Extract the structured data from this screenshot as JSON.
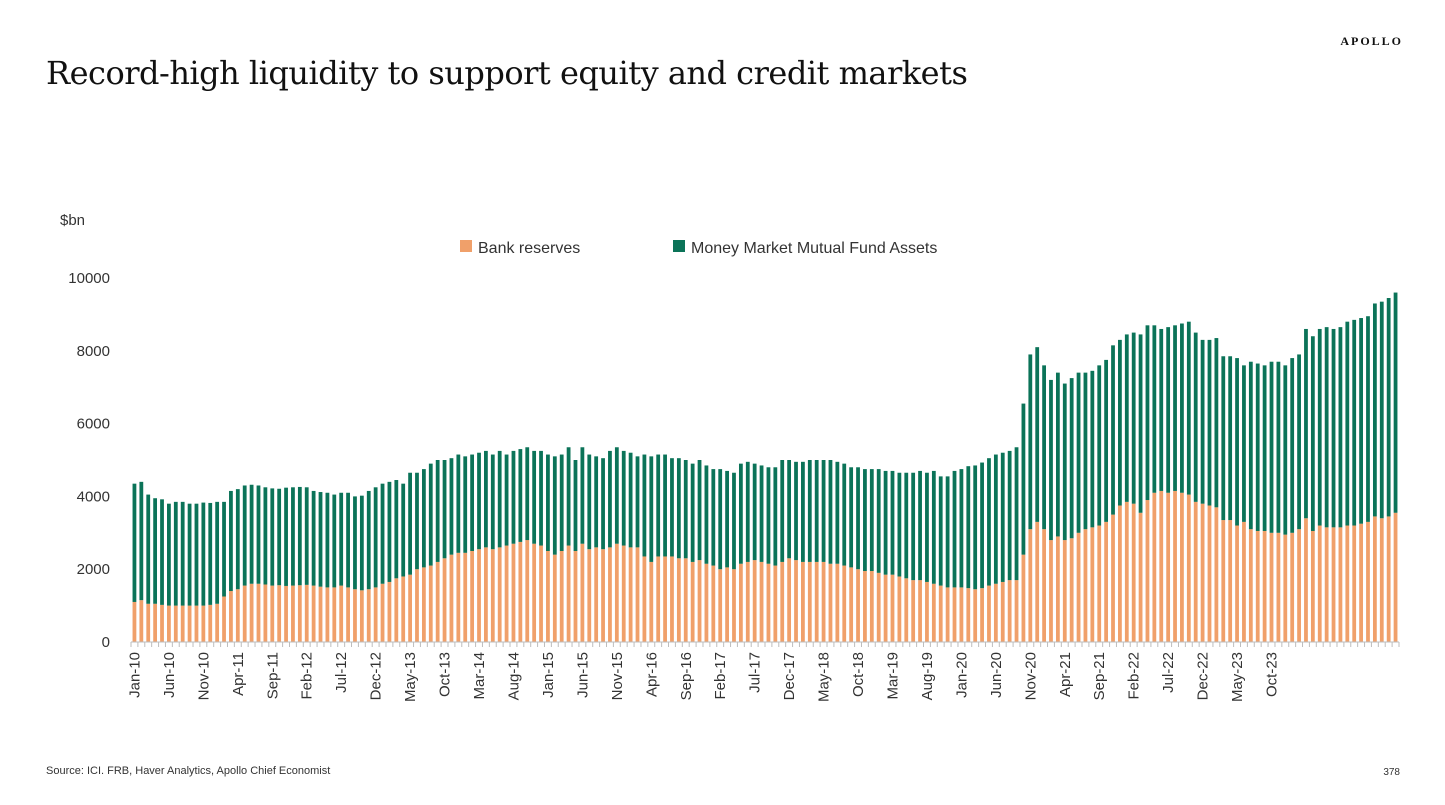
{
  "brand": "APOLLO",
  "title": "Record-high liquidity to support equity and credit markets",
  "source": "Source: ICI. FRB, Haver Analytics, Apollo Chief Economist",
  "page_number": "378",
  "colors": {
    "bank_reserves": "#f0a06a",
    "mmf": "#0b7358"
  },
  "chart_data": {
    "type": "bar",
    "stacked": true,
    "ylabel": "$bn",
    "ylim": [
      0,
      10000
    ],
    "yticks": [
      0,
      2000,
      4000,
      6000,
      8000,
      10000
    ],
    "xtick_labels": [
      "Jan-10",
      "Jun-10",
      "Nov-10",
      "Apr-11",
      "Sep-11",
      "Feb-12",
      "Jul-12",
      "Dec-12",
      "May-13",
      "Oct-13",
      "Mar-14",
      "Aug-14",
      "Jan-15",
      "Jun-15",
      "Nov-15",
      "Apr-16",
      "Sep-16",
      "Feb-17",
      "Jul-17",
      "Dec-17",
      "May-18",
      "Oct-18",
      "Mar-19",
      "Aug-19",
      "Jan-20",
      "Jun-20",
      "Nov-20",
      "Apr-21",
      "Sep-21",
      "Feb-22",
      "Jul-22",
      "Dec-22",
      "May-23",
      "Oct-23"
    ],
    "legend_position": "top-center",
    "series": [
      {
        "name": "Bank reserves",
        "values": [
          1100,
          1150,
          1050,
          1050,
          1020,
          1000,
          1000,
          1000,
          1000,
          1000,
          1000,
          1020,
          1050,
          1250,
          1400,
          1450,
          1550,
          1600,
          1600,
          1580,
          1550,
          1560,
          1540,
          1550,
          1560,
          1570,
          1550,
          1520,
          1500,
          1500,
          1550,
          1500,
          1450,
          1420,
          1450,
          1500,
          1600,
          1650,
          1750,
          1800,
          1850,
          2000,
          2050,
          2100,
          2200,
          2300,
          2400,
          2450,
          2450,
          2500,
          2550,
          2600,
          2550,
          2600,
          2650,
          2700,
          2750,
          2800,
          2700,
          2650,
          2500,
          2400,
          2500,
          2650,
          2500,
          2700,
          2550,
          2600,
          2550,
          2600,
          2700,
          2650,
          2600,
          2600,
          2350,
          2200,
          2350,
          2350,
          2350,
          2300,
          2300,
          2200,
          2250,
          2150,
          2100,
          2000,
          2050,
          2000,
          2150,
          2200,
          2250,
          2200,
          2150,
          2100,
          2200,
          2300,
          2250,
          2200,
          2200,
          2200,
          2200,
          2150,
          2150,
          2100,
          2050,
          2000,
          1950,
          1950,
          1900,
          1850,
          1850,
          1800,
          1750,
          1700,
          1700,
          1650,
          1600,
          1550,
          1500,
          1500,
          1500,
          1480,
          1450,
          1480,
          1550,
          1600,
          1650,
          1700,
          1700,
          2400,
          3100,
          3300,
          3100,
          2800,
          2900,
          2800,
          2850,
          3000,
          3100,
          3150,
          3200,
          3300,
          3500,
          3750,
          3850,
          3800,
          3550,
          3900,
          4100,
          4150,
          4100,
          4150,
          4100,
          4050,
          3850,
          3800,
          3750,
          3700,
          3350,
          3350,
          3200,
          3300,
          3100,
          3050,
          3050,
          3000,
          3000,
          2950,
          3000,
          3100,
          3400,
          3050,
          3200,
          3150,
          3150,
          3150,
          3200,
          3200,
          3250,
          3300,
          3450,
          3400,
          3450,
          3550
        ]
      },
      {
        "name": "Money Market Mutual Fund Assets",
        "values": [
          3250,
          3250,
          3000,
          2900,
          2900,
          2800,
          2850,
          2850,
          2800,
          2800,
          2830,
          2800,
          2800,
          2600,
          2750,
          2750,
          2750,
          2720,
          2700,
          2670,
          2670,
          2650,
          2700,
          2700,
          2700,
          2680,
          2600,
          2600,
          2600,
          2550,
          2550,
          2600,
          2550,
          2600,
          2700,
          2750,
          2750,
          2750,
          2700,
          2550,
          2800,
          2650,
          2700,
          2800,
          2800,
          2700,
          2650,
          2700,
          2650,
          2650,
          2650,
          2650,
          2600,
          2650,
          2500,
          2550,
          2550,
          2550,
          2550,
          2600,
          2650,
          2700,
          2650,
          2700,
          2500,
          2650,
          2600,
          2500,
          2500,
          2650,
          2650,
          2600,
          2600,
          2500,
          2800,
          2900,
          2800,
          2800,
          2700,
          2750,
          2700,
          2700,
          2750,
          2700,
          2650,
          2750,
          2650,
          2650,
          2750,
          2750,
          2650,
          2650,
          2650,
          2700,
          2800,
          2700,
          2700,
          2750,
          2800,
          2800,
          2800,
          2850,
          2800,
          2800,
          2750,
          2800,
          2800,
          2800,
          2850,
          2850,
          2850,
          2850,
          2900,
          2950,
          3000,
          3000,
          3100,
          3000,
          3050,
          3200,
          3250,
          3350,
          3400,
          3450,
          3500,
          3550,
          3550,
          3550,
          3650,
          4150,
          4800,
          4800,
          4500,
          4400,
          4500,
          4300,
          4400,
          4400,
          4300,
          4300,
          4400,
          4450,
          4650,
          4550,
          4600,
          4700,
          4900,
          4800,
          4600,
          4450,
          4550,
          4550,
          4650,
          4750,
          4650,
          4500,
          4550,
          4650,
          4500,
          4500,
          4600,
          4300,
          4600,
          4600,
          4550,
          4700,
          4700,
          4650,
          4800,
          4800,
          5200,
          5350,
          5400,
          5500,
          5450,
          5500,
          5600,
          5650,
          5650,
          5650,
          5850,
          5950,
          6000,
          6050
        ]
      }
    ]
  }
}
